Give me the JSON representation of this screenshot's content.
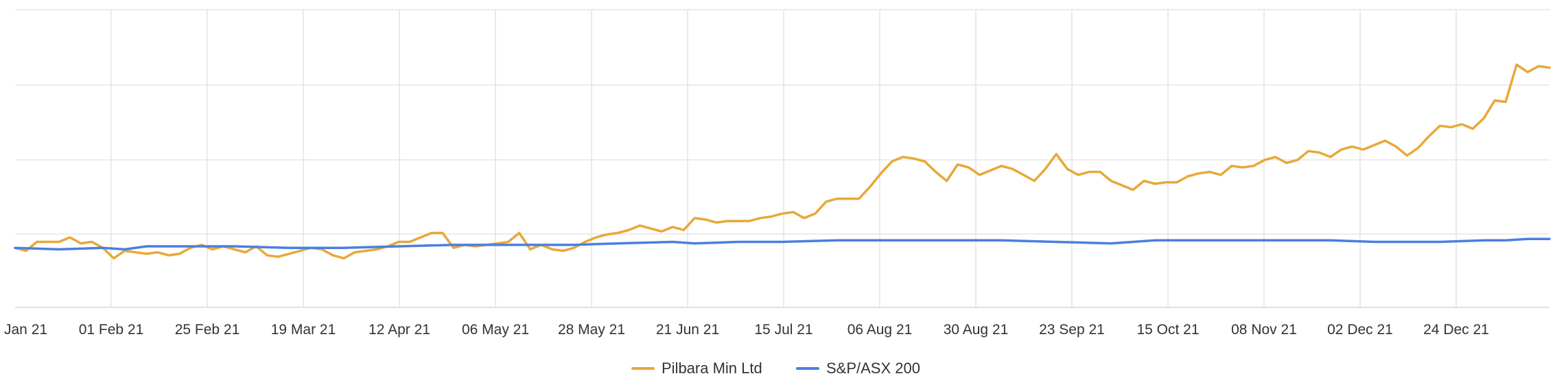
{
  "chart_data": {
    "type": "line",
    "title": "",
    "xlabel": "",
    "ylabel": "",
    "y_axis_labels_shown": false,
    "ylim": [
      0.6,
      2.6
    ],
    "grid": true,
    "legend_position": "bottom-center",
    "x_tick_labels": [
      "Jan 21",
      "01 Feb 21",
      "25 Feb 21",
      "19 Mar 21",
      "12 Apr 21",
      "06 May 21",
      "28 May 21",
      "21 Jun 21",
      "15 Jul 21",
      "06 Aug 21",
      "30 Aug 21",
      "23 Sep 21",
      "15 Oct 21",
      "08 Nov 21",
      "02 Dec 21",
      "24 Dec 21"
    ],
    "series": [
      {
        "name": "Pilbara Min Ltd",
        "color": "#E8A838",
        "points": [
          [
            0,
            1.0
          ],
          [
            1,
            0.98
          ],
          [
            2,
            1.04
          ],
          [
            3,
            1.04
          ],
          [
            4,
            1.04
          ],
          [
            5,
            1.07
          ],
          [
            6,
            1.03
          ],
          [
            7,
            1.04
          ],
          [
            8,
            1.0
          ],
          [
            9,
            0.93
          ],
          [
            10,
            0.98
          ],
          [
            11,
            0.97
          ],
          [
            12,
            0.96
          ],
          [
            13,
            0.97
          ],
          [
            14,
            0.95
          ],
          [
            15,
            0.96
          ],
          [
            16,
            1.0
          ],
          [
            17,
            1.02
          ],
          [
            18,
            0.99
          ],
          [
            19,
            1.01
          ],
          [
            20,
            0.99
          ],
          [
            21,
            0.97
          ],
          [
            22,
            1.01
          ],
          [
            23,
            0.95
          ],
          [
            24,
            0.94
          ],
          [
            25,
            0.96
          ],
          [
            26,
            0.98
          ],
          [
            27,
            1.0
          ],
          [
            28,
            0.99
          ],
          [
            29,
            0.95
          ],
          [
            30,
            0.93
          ],
          [
            31,
            0.97
          ],
          [
            32,
            0.98
          ],
          [
            33,
            0.99
          ],
          [
            34,
            1.01
          ],
          [
            35,
            1.04
          ],
          [
            36,
            1.04
          ],
          [
            37,
            1.07
          ],
          [
            38,
            1.1
          ],
          [
            39,
            1.1
          ],
          [
            40,
            1.0
          ],
          [
            41,
            1.02
          ],
          [
            42,
            1.01
          ],
          [
            43,
            1.02
          ],
          [
            44,
            1.03
          ],
          [
            45,
            1.04
          ],
          [
            46,
            1.1
          ],
          [
            47,
            0.99
          ],
          [
            48,
            1.02
          ],
          [
            49,
            0.99
          ],
          [
            50,
            0.98
          ],
          [
            51,
            1.0
          ],
          [
            52,
            1.04
          ],
          [
            53,
            1.07
          ],
          [
            54,
            1.09
          ],
          [
            55,
            1.1
          ],
          [
            56,
            1.12
          ],
          [
            57,
            1.15
          ],
          [
            58,
            1.13
          ],
          [
            59,
            1.11
          ],
          [
            60,
            1.14
          ],
          [
            61,
            1.12
          ],
          [
            62,
            1.2
          ],
          [
            63,
            1.19
          ],
          [
            64,
            1.17
          ],
          [
            65,
            1.18
          ],
          [
            66,
            1.18
          ],
          [
            67,
            1.18
          ],
          [
            68,
            1.2
          ],
          [
            69,
            1.21
          ],
          [
            70,
            1.23
          ],
          [
            71,
            1.24
          ],
          [
            72,
            1.2
          ],
          [
            73,
            1.23
          ],
          [
            74,
            1.31
          ],
          [
            75,
            1.33
          ],
          [
            76,
            1.33
          ],
          [
            77,
            1.33
          ],
          [
            78,
            1.41
          ],
          [
            79,
            1.5
          ],
          [
            80,
            1.58
          ],
          [
            81,
            1.61
          ],
          [
            82,
            1.6
          ],
          [
            83,
            1.58
          ],
          [
            84,
            1.51
          ],
          [
            85,
            1.45
          ],
          [
            86,
            1.56
          ],
          [
            87,
            1.54
          ],
          [
            88,
            1.49
          ],
          [
            89,
            1.52
          ],
          [
            90,
            1.55
          ],
          [
            91,
            1.53
          ],
          [
            92,
            1.49
          ],
          [
            93,
            1.45
          ],
          [
            94,
            1.53
          ],
          [
            95,
            1.63
          ],
          [
            96,
            1.53
          ],
          [
            97,
            1.49
          ],
          [
            98,
            1.51
          ],
          [
            99,
            1.51
          ],
          [
            100,
            1.45
          ],
          [
            101,
            1.42
          ],
          [
            102,
            1.39
          ],
          [
            103,
            1.45
          ],
          [
            104,
            1.43
          ],
          [
            105,
            1.44
          ],
          [
            106,
            1.44
          ],
          [
            107,
            1.48
          ],
          [
            108,
            1.5
          ],
          [
            109,
            1.51
          ],
          [
            110,
            1.49
          ],
          [
            111,
            1.55
          ],
          [
            112,
            1.54
          ],
          [
            113,
            1.55
          ],
          [
            114,
            1.59
          ],
          [
            115,
            1.61
          ],
          [
            116,
            1.57
          ],
          [
            117,
            1.59
          ],
          [
            118,
            1.65
          ],
          [
            119,
            1.64
          ],
          [
            120,
            1.61
          ],
          [
            121,
            1.66
          ],
          [
            122,
            1.68
          ],
          [
            123,
            1.66
          ],
          [
            124,
            1.69
          ],
          [
            125,
            1.72
          ],
          [
            126,
            1.68
          ],
          [
            127,
            1.62
          ],
          [
            128,
            1.67
          ],
          [
            129,
            1.75
          ],
          [
            130,
            1.82
          ],
          [
            131,
            1.81
          ],
          [
            132,
            1.83
          ],
          [
            133,
            1.8
          ],
          [
            134,
            1.87
          ],
          [
            135,
            1.99
          ],
          [
            136,
            1.98
          ],
          [
            137,
            2.23
          ],
          [
            138,
            2.18
          ],
          [
            139,
            2.22
          ],
          [
            140,
            2.21
          ]
        ]
      },
      {
        "name": "S&P/ASX 200",
        "color": "#4A7FE0",
        "points": [
          [
            0,
            1.0
          ],
          [
            4,
            0.99
          ],
          [
            8,
            1.0
          ],
          [
            10,
            0.99
          ],
          [
            12,
            1.01
          ],
          [
            20,
            1.01
          ],
          [
            25,
            1.0
          ],
          [
            30,
            1.0
          ],
          [
            35,
            1.01
          ],
          [
            40,
            1.02
          ],
          [
            45,
            1.02
          ],
          [
            49,
            1.02
          ],
          [
            51,
            1.02
          ],
          [
            55,
            1.03
          ],
          [
            60,
            1.04
          ],
          [
            62,
            1.03
          ],
          [
            66,
            1.04
          ],
          [
            70,
            1.04
          ],
          [
            75,
            1.05
          ],
          [
            80,
            1.05
          ],
          [
            85,
            1.05
          ],
          [
            90,
            1.05
          ],
          [
            95,
            1.04
          ],
          [
            100,
            1.03
          ],
          [
            104,
            1.05
          ],
          [
            108,
            1.05
          ],
          [
            110,
            1.05
          ],
          [
            112,
            1.05
          ],
          [
            116,
            1.05
          ],
          [
            120,
            1.05
          ],
          [
            124,
            1.04
          ],
          [
            128,
            1.04
          ],
          [
            130,
            1.04
          ],
          [
            134,
            1.05
          ],
          [
            136,
            1.05
          ],
          [
            138,
            1.06
          ],
          [
            140,
            1.06
          ]
        ]
      }
    ]
  }
}
